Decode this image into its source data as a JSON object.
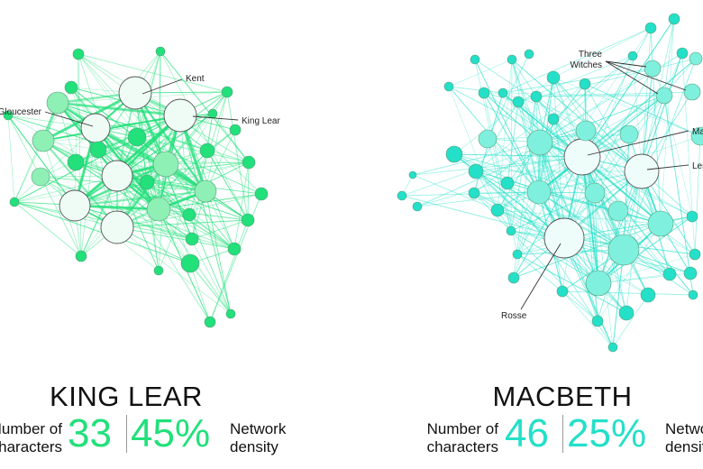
{
  "plays": [
    {
      "id": "lear",
      "title": "KING LEAR",
      "character_count": "33",
      "density": "45%",
      "accent": "#22e07a",
      "node_fill": "#8ef0b4",
      "labels": [
        "Kent",
        "Gloucester",
        "King Lear"
      ]
    },
    {
      "id": "macbeth",
      "title": "MACBETH",
      "character_count": "46",
      "density": "25%",
      "accent": "#24e0c8",
      "node_fill": "#7ff0de",
      "labels": [
        "Three Witches",
        "Macbeth",
        "Lennox",
        "Rosse"
      ]
    }
  ],
  "stat_text": {
    "characters_line1": "Number of",
    "characters_line2": "characters",
    "density_line1": "Network",
    "density_line2": "density"
  }
}
